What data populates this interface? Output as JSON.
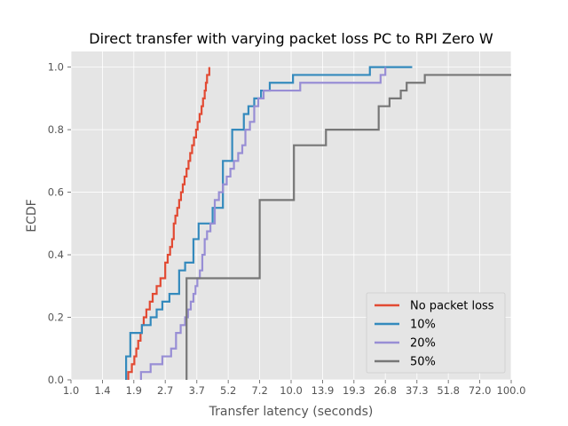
{
  "chart_data": {
    "type": "ecdf_step",
    "title": "Direct transfer with varying packet loss PC to RPI Zero W",
    "xlabel": "Transfer latency (seconds)",
    "ylabel": "ECDF",
    "xscale": "log",
    "xlim": [
      1.0,
      100.0
    ],
    "ylim": [
      0.0,
      1.05
    ],
    "grid": true,
    "legend_position": "lower-right",
    "xticks": [
      1.0,
      1.39,
      1.93,
      2.68,
      3.73,
      5.18,
      7.2,
      10.0,
      13.9,
      19.3,
      26.8,
      37.3,
      51.8,
      72.0,
      100.0
    ],
    "xtick_labels": [
      "1.0",
      "1.4",
      "1.9",
      "2.7",
      "3.7",
      "5.2",
      "7.2",
      "10.0",
      "13.9",
      "19.3",
      "26.8",
      "37.3",
      "51.8",
      "72.0",
      "100.0"
    ],
    "yticks": [
      0.0,
      0.2,
      0.4,
      0.6,
      0.8,
      1.0
    ],
    "ytick_labels": [
      "0.0",
      "0.2",
      "0.4",
      "0.6",
      "0.8",
      "1.0"
    ],
    "series": [
      {
        "name": "No packet loss",
        "color": "#E24A33",
        "x": [
          1.82,
          1.89,
          1.94,
          1.98,
          2.02,
          2.07,
          2.1,
          2.14,
          2.2,
          2.28,
          2.35,
          2.45,
          2.55,
          2.68,
          2.75,
          2.82,
          2.88,
          2.93,
          2.98,
          3.04,
          3.1,
          3.16,
          3.22,
          3.28,
          3.35,
          3.42,
          3.48,
          3.55,
          3.62,
          3.7,
          3.76,
          3.84,
          3.92,
          3.98,
          4.05,
          4.1,
          4.15,
          4.25
        ],
        "y": [
          0.025,
          0.05,
          0.075,
          0.1,
          0.125,
          0.15,
          0.175,
          0.2,
          0.225,
          0.25,
          0.275,
          0.3,
          0.325,
          0.375,
          0.4,
          0.425,
          0.45,
          0.5,
          0.525,
          0.55,
          0.575,
          0.6,
          0.625,
          0.65,
          0.675,
          0.7,
          0.725,
          0.75,
          0.775,
          0.8,
          0.825,
          0.85,
          0.875,
          0.9,
          0.925,
          0.95,
          0.975,
          1.0
        ]
      },
      {
        "name": "10%",
        "color": "#348ABD",
        "x": [
          1.78,
          1.86,
          2.1,
          2.3,
          2.45,
          2.6,
          2.8,
          3.1,
          3.3,
          3.6,
          3.8,
          4.4,
          4.9,
          5.4,
          6.1,
          6.4,
          6.8,
          7.3,
          8.0,
          10.2,
          22.8,
          35.5
        ],
        "y": [
          0.075,
          0.15,
          0.175,
          0.2,
          0.225,
          0.25,
          0.275,
          0.35,
          0.375,
          0.45,
          0.5,
          0.55,
          0.7,
          0.8,
          0.85,
          0.875,
          0.9,
          0.925,
          0.95,
          0.975,
          1.0,
          1.0
        ]
      },
      {
        "name": "20%",
        "color": "#988ED5",
        "x": [
          2.08,
          2.3,
          2.6,
          2.85,
          3.0,
          3.15,
          3.3,
          3.4,
          3.5,
          3.6,
          3.68,
          3.75,
          3.85,
          3.95,
          4.05,
          4.15,
          4.3,
          4.5,
          4.7,
          4.9,
          5.1,
          5.3,
          5.5,
          5.75,
          6.0,
          6.2,
          6.5,
          6.8,
          7.1,
          7.5,
          11.0,
          25.5,
          26.8
        ],
        "y": [
          0.025,
          0.05,
          0.075,
          0.1,
          0.15,
          0.175,
          0.2,
          0.225,
          0.25,
          0.275,
          0.3,
          0.325,
          0.35,
          0.4,
          0.45,
          0.475,
          0.5,
          0.575,
          0.6,
          0.625,
          0.65,
          0.675,
          0.7,
          0.725,
          0.75,
          0.8,
          0.825,
          0.875,
          0.9,
          0.925,
          0.95,
          0.975,
          1.0
        ]
      },
      {
        "name": "50%",
        "color": "#777777",
        "x": [
          3.35,
          7.2,
          10.3,
          14.4,
          25.0,
          28.0,
          31.5,
          33.5,
          40.5,
          46.0
        ],
        "y": [
          0.325,
          0.575,
          0.75,
          0.8,
          0.875,
          0.9,
          0.925,
          0.95,
          0.975,
          0.975
        ]
      }
    ]
  }
}
